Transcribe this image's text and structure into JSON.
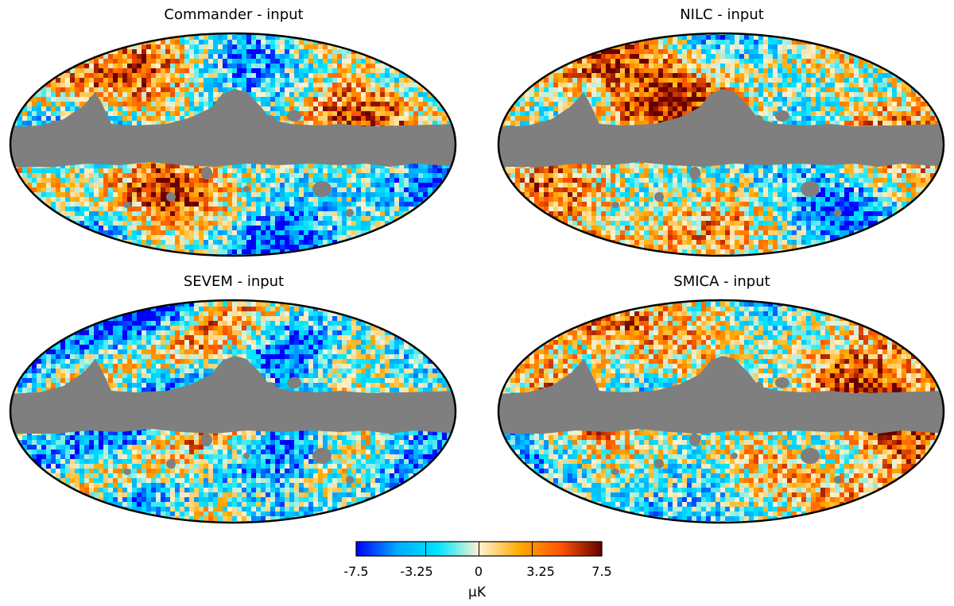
{
  "chart_data": {
    "type": "heatmap",
    "description_kind": "mollweide-sky-maps",
    "panels": [
      {
        "title": "Commander - input",
        "seed": 11,
        "blue_bias": 0.1
      },
      {
        "title": "NILC - input",
        "seed": 23,
        "blue_bias": -0.05
      },
      {
        "title": "SEVEM - input",
        "seed": 37,
        "blue_bias": 0.18
      },
      {
        "title": "SMICA - input",
        "seed": 53,
        "blue_bias": 0.0
      }
    ],
    "colorbar": {
      "min": -7.5,
      "max": 7.5,
      "ticks": [
        -7.5,
        -3.25,
        0,
        3.25,
        7.5
      ],
      "tick_labels": [
        "-7.5",
        "-3.25",
        "0",
        "3.25",
        "7.5"
      ],
      "unit": "μK",
      "colors": [
        "#0000ff",
        "#00aaff",
        "#00e6ff",
        "#fff2d0",
        "#ffaa00",
        "#ff5500",
        "#660000"
      ]
    },
    "mask_color": "#7f7f7f"
  }
}
